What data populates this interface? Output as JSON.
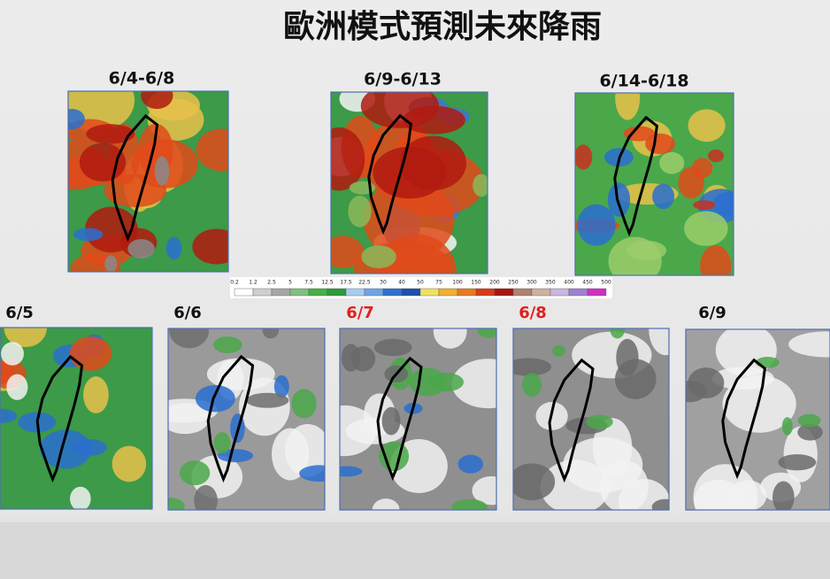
{
  "title": "歐洲模式預測未來降雨",
  "periods": [
    {
      "label": "6/4-6/8"
    },
    {
      "label": "6/9-6/13"
    },
    {
      "label": "6/14-6/18"
    }
  ],
  "days": [
    {
      "label": "6/5"
    },
    {
      "label": "6/6"
    },
    {
      "label": "6/7"
    },
    {
      "label": "6/8"
    },
    {
      "label": "6/9"
    }
  ],
  "colorbar": {
    "labels": [
      "0.2",
      "1.2",
      "2.5",
      "5",
      "7.5",
      "12.5",
      "17.5",
      "22.5",
      "30",
      "40",
      "50",
      "75",
      "100",
      "150",
      "200",
      "250",
      "300",
      "350",
      "400",
      "450",
      "500"
    ]
  }
}
